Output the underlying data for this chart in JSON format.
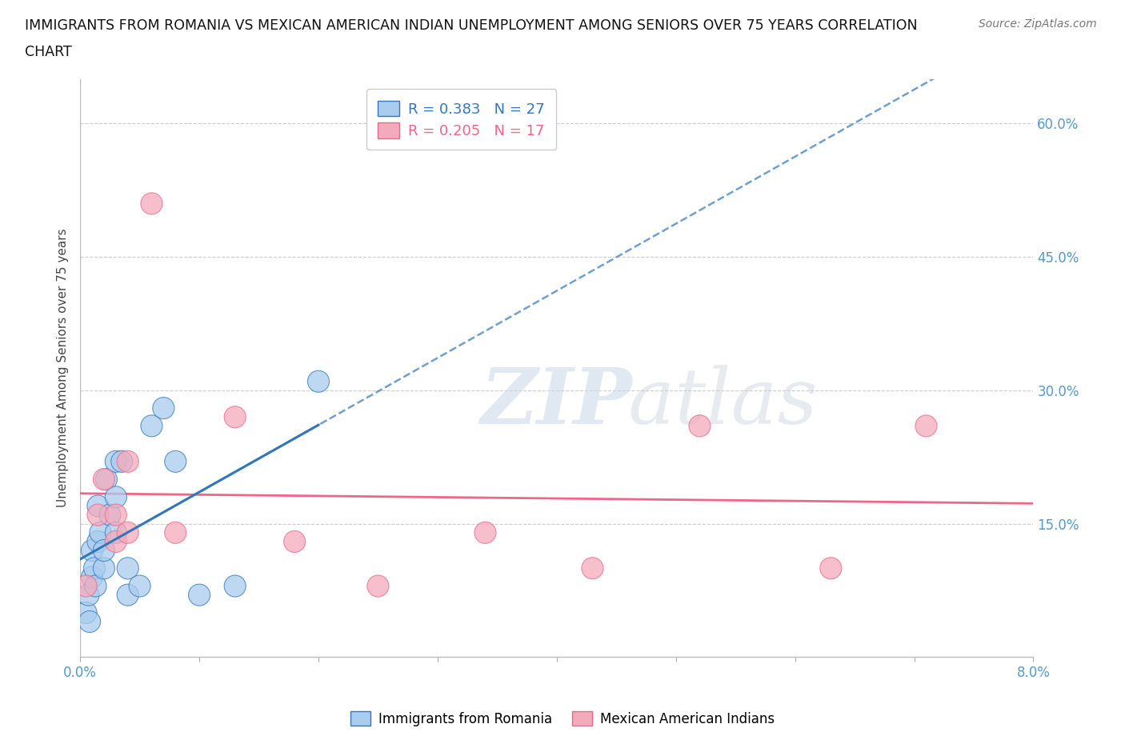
{
  "title_line1": "IMMIGRANTS FROM ROMANIA VS MEXICAN AMERICAN INDIAN UNEMPLOYMENT AMONG SENIORS OVER 75 YEARS CORRELATION",
  "title_line2": "CHART",
  "source": "Source: ZipAtlas.com",
  "ylabel": "Unemployment Among Seniors over 75 years",
  "xlim": [
    0.0,
    0.08
  ],
  "ylim": [
    0.0,
    0.65
  ],
  "xticks": [
    0.0,
    0.01,
    0.02,
    0.03,
    0.04,
    0.05,
    0.06,
    0.07,
    0.08
  ],
  "xticklabels": [
    "0.0%",
    "",
    "",
    "",
    "",
    "",
    "",
    "",
    "8.0%"
  ],
  "yticks_right": [
    0.15,
    0.3,
    0.45,
    0.6
  ],
  "yticklabels_right": [
    "15.0%",
    "30.0%",
    "45.0%",
    "60.0%"
  ],
  "grid_yticks": [
    0.15,
    0.3,
    0.45,
    0.6
  ],
  "romania_R": 0.383,
  "romania_N": 27,
  "mexico_R": 0.205,
  "mexico_N": 17,
  "romania_color": "#aaccee",
  "mexico_color": "#f5aabb",
  "romania_line_color": "#3377bb",
  "mexico_line_color": "#ee6688",
  "romania_x": [
    0.0005,
    0.0007,
    0.0008,
    0.001,
    0.001,
    0.0012,
    0.0013,
    0.0015,
    0.0015,
    0.0017,
    0.002,
    0.002,
    0.0022,
    0.0025,
    0.003,
    0.003,
    0.003,
    0.0035,
    0.004,
    0.004,
    0.005,
    0.006,
    0.007,
    0.008,
    0.01,
    0.013,
    0.02
  ],
  "romania_y": [
    0.05,
    0.07,
    0.04,
    0.09,
    0.12,
    0.1,
    0.08,
    0.13,
    0.17,
    0.14,
    0.1,
    0.12,
    0.2,
    0.16,
    0.14,
    0.18,
    0.22,
    0.22,
    0.1,
    0.07,
    0.08,
    0.26,
    0.28,
    0.22,
    0.07,
    0.08,
    0.31
  ],
  "mexico_x": [
    0.0005,
    0.0015,
    0.002,
    0.003,
    0.003,
    0.004,
    0.004,
    0.006,
    0.008,
    0.013,
    0.018,
    0.025,
    0.034,
    0.043,
    0.052,
    0.063,
    0.071
  ],
  "mexico_y": [
    0.08,
    0.16,
    0.2,
    0.13,
    0.16,
    0.14,
    0.22,
    0.51,
    0.14,
    0.27,
    0.13,
    0.08,
    0.14,
    0.1,
    0.26,
    0.1,
    0.26
  ],
  "romania_sizes_scale": 1.0,
  "mexico_sizes_scale": 1.0
}
